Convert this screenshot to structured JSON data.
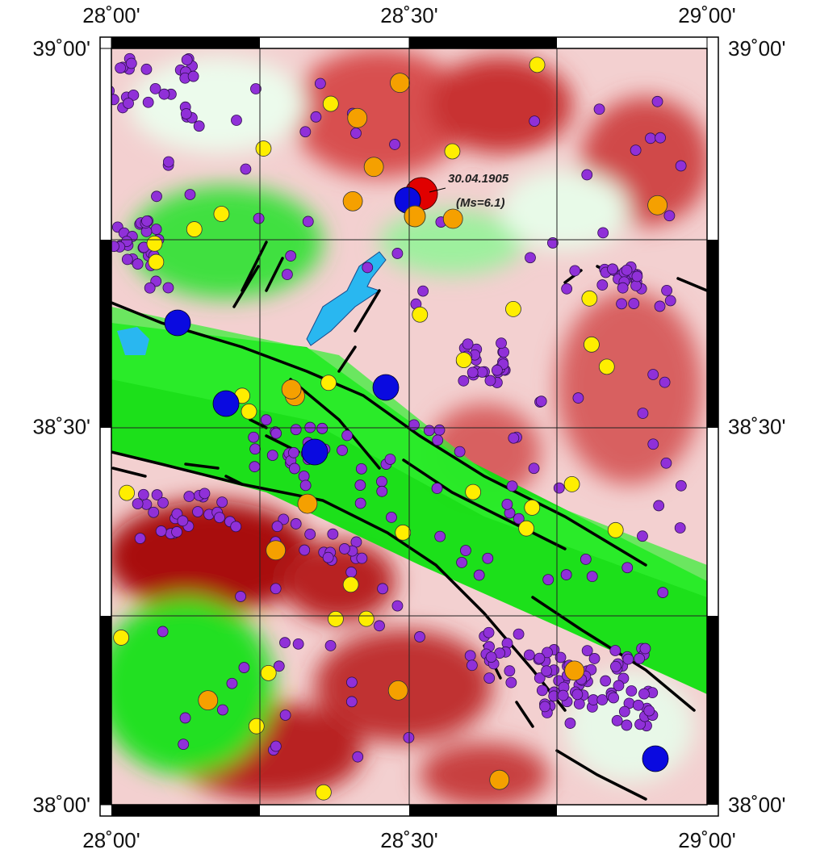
{
  "map": {
    "xlim": [
      28,
      29
    ],
    "ylim": [
      38,
      39
    ],
    "xticks": [
      {
        "value": 28,
        "label": "28˚00'"
      },
      {
        "value": 28.5,
        "label": "28˚30'"
      },
      {
        "value": 29,
        "label": "29˚00'"
      }
    ],
    "yticks": [
      {
        "value": 39,
        "label": "39˚00'"
      },
      {
        "value": 38.5,
        "label": "38˚30'"
      },
      {
        "value": 38,
        "label": "38˚00'"
      }
    ],
    "annotation": {
      "date": "30.04.1905",
      "magnitude": "(Ms=6.1)"
    }
  }
}
